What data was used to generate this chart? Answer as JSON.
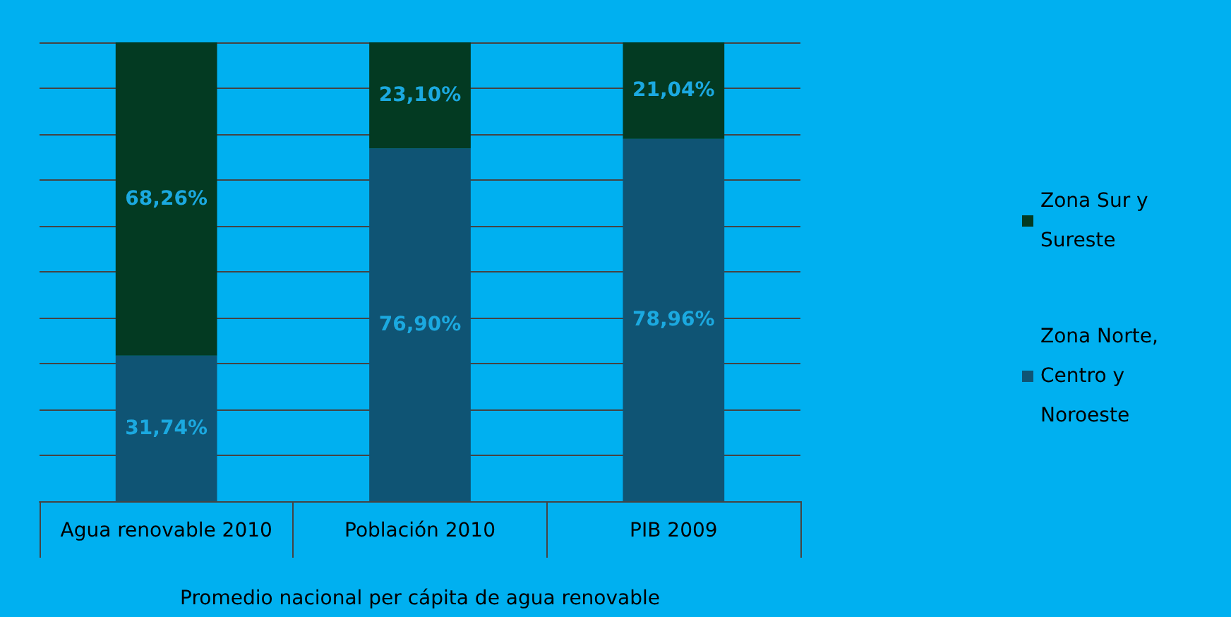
{
  "chart_data": {
    "type": "bar",
    "stacked": true,
    "categories": [
      "Agua renovable 2010",
      "Población 2010",
      "PIB 2009"
    ],
    "xlabel": "Promedio nacional per cápita de agua renovable",
    "series": [
      {
        "name": "Zona Norte, Centro y Noroeste",
        "color": "#0f5474",
        "values": [
          31.74,
          76.9,
          78.96
        ],
        "value_labels": [
          "31,74%",
          "76,90%",
          "78,96%"
        ]
      },
      {
        "name": "Zona Sur y Sureste",
        "color": "#033a22",
        "values": [
          68.26,
          23.1,
          21.04
        ],
        "value_labels": [
          "68,26%",
          "23,10%",
          "21,04%"
        ]
      }
    ],
    "ylim": [
      0,
      100
    ],
    "yticks": [
      {
        "value": 0,
        "label": null
      },
      {
        "value": 10,
        "label": null
      },
      {
        "value": 20,
        "label": null
      },
      {
        "value": 30,
        "label": null
      },
      {
        "value": 40,
        "label": null
      },
      {
        "value": 50,
        "label": null
      },
      {
        "value": 60,
        "label": null
      },
      {
        "value": 70,
        "label": null
      },
      {
        "value": 80,
        "label": null
      },
      {
        "value": 90,
        "label": null
      },
      {
        "value": 100,
        "label": null
      }
    ],
    "tick_labels": "x",
    "grid": "y",
    "legend": "right"
  }
}
